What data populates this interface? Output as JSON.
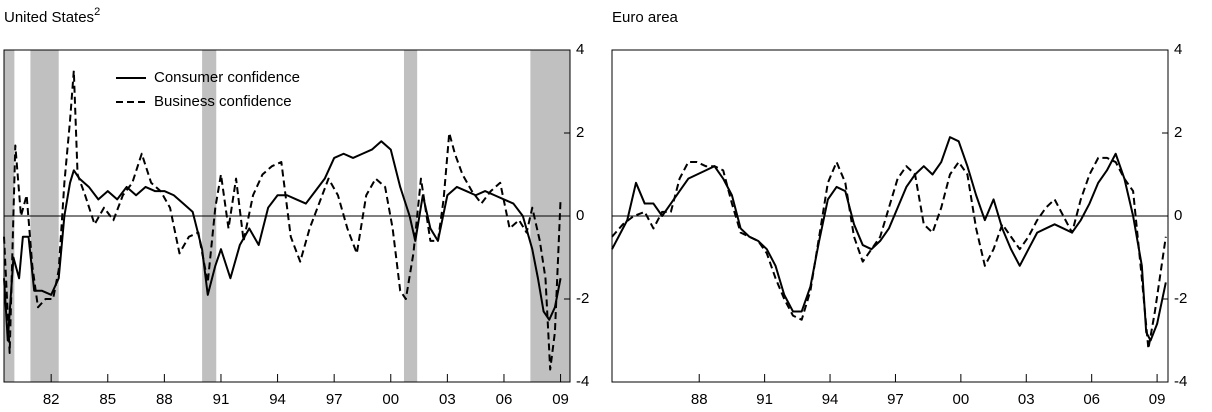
{
  "chart_data": [
    {
      "type": "line",
      "title": "United States",
      "title_superscript": "2",
      "xlim": [
        1980,
        2010
      ],
      "ylim": [
        -4,
        4
      ],
      "xticks": [
        {
          "value": 1982.5,
          "label": "82"
        },
        {
          "value": 1985.5,
          "label": "85"
        },
        {
          "value": 1988.5,
          "label": "88"
        },
        {
          "value": 1991.5,
          "label": "91"
        },
        {
          "value": 1994.5,
          "label": "94"
        },
        {
          "value": 1997.5,
          "label": "97"
        },
        {
          "value": 2000.5,
          "label": "00"
        },
        {
          "value": 2003.5,
          "label": "03"
        },
        {
          "value": 2006.5,
          "label": "06"
        },
        {
          "value": 2009.5,
          "label": "09"
        }
      ],
      "yticks": [
        -4,
        -2,
        0,
        2,
        4
      ],
      "legend": "upper left",
      "shade_color": "#c0c0c0",
      "shaded_periods": [
        [
          1980.0,
          1980.55
        ],
        [
          1981.4,
          1982.9
        ],
        [
          1990.5,
          1991.25
        ],
        [
          2001.2,
          2001.9
        ],
        [
          2007.9,
          2010
        ]
      ],
      "series": [
        {
          "name": "Consumer confidence",
          "color": "#000000",
          "line_style": "solid",
          "x": [
            1980.0,
            1980.2,
            1980.5,
            1980.8,
            1981.0,
            1981.3,
            1981.6,
            1982.0,
            1982.5,
            1982.9,
            1983.2,
            1983.5,
            1983.7,
            1984.0,
            1984.5,
            1985.0,
            1985.5,
            1986.0,
            1986.5,
            1987.0,
            1987.5,
            1988.0,
            1988.5,
            1989.0,
            1989.5,
            1990.0,
            1990.5,
            1990.8,
            1991.2,
            1991.5,
            1992.0,
            1992.5,
            1993.0,
            1993.5,
            1994.0,
            1994.5,
            1995.0,
            1995.5,
            1996.0,
            1996.5,
            1997.0,
            1997.5,
            1998.0,
            1998.5,
            1999.0,
            1999.5,
            2000.0,
            2000.5,
            2001.0,
            2001.5,
            2001.8,
            2002.2,
            2002.6,
            2003.0,
            2003.5,
            2004.0,
            2004.5,
            2005.0,
            2005.5,
            2006.0,
            2006.5,
            2007.0,
            2007.5,
            2008.0,
            2008.3,
            2008.6,
            2008.9,
            2009.2,
            2009.5
          ],
          "values": [
            -1.5,
            -3.0,
            -1.0,
            -1.5,
            -0.5,
            -0.5,
            -1.8,
            -1.8,
            -1.9,
            -1.5,
            0,
            0.8,
            1.1,
            0.9,
            0.7,
            0.4,
            0.6,
            0.4,
            0.7,
            0.5,
            0.7,
            0.6,
            0.6,
            0.5,
            0.3,
            0.1,
            -0.8,
            -1.9,
            -1.2,
            -0.8,
            -1.5,
            -0.7,
            -0.3,
            -0.7,
            0.2,
            0.5,
            0.5,
            0.4,
            0.3,
            0.6,
            0.9,
            1.4,
            1.5,
            1.4,
            1.5,
            1.6,
            1.8,
            1.6,
            0.7,
            0,
            -0.6,
            0.5,
            -0.3,
            -0.6,
            0.5,
            0.7,
            0.6,
            0.5,
            0.6,
            0.5,
            0.4,
            0.3,
            0,
            -0.8,
            -1.5,
            -2.3,
            -2.5,
            -2.2,
            -1.5
          ]
        },
        {
          "name": "Business confidence",
          "color": "#000000",
          "line_style": "dashed",
          "x": [
            1980.0,
            1980.3,
            1980.6,
            1980.9,
            1981.2,
            1981.5,
            1981.8,
            1982.2,
            1982.6,
            1982.9,
            1983.2,
            1983.5,
            1983.7,
            1983.9,
            1984.3,
            1984.8,
            1985.3,
            1985.8,
            1986.3,
            1986.8,
            1987.3,
            1987.8,
            1988.3,
            1988.8,
            1989.3,
            1989.8,
            1990.3,
            1990.8,
            1991.2,
            1991.5,
            1991.9,
            1992.3,
            1992.7,
            1993.2,
            1993.7,
            1994.2,
            1994.7,
            1995.2,
            1995.7,
            1996.2,
            1996.7,
            1997.2,
            1997.7,
            1998.2,
            1998.7,
            1999.2,
            1999.7,
            2000.2,
            2000.6,
            2001.0,
            2001.3,
            2001.7,
            2002.1,
            2002.6,
            2003.0,
            2003.3,
            2003.6,
            2003.9,
            2004.3,
            2004.8,
            2005.3,
            2005.8,
            2006.3,
            2006.8,
            2007.3,
            2007.7,
            2008.0,
            2008.4,
            2008.7,
            2008.95,
            2009.2,
            2009.5
          ],
          "values": [
            -0.5,
            -3.3,
            1.7,
            0,
            0.5,
            -1.2,
            -2.2,
            -2.0,
            -2.0,
            -1.3,
            0.8,
            2.3,
            3.5,
            1.0,
            0.5,
            -0.2,
            0.2,
            -0.1,
            0.5,
            0.8,
            1.5,
            0.8,
            0.6,
            0.2,
            -0.9,
            -0.5,
            -0.4,
            -1.6,
            0.2,
            1.0,
            -0.3,
            0.9,
            -0.6,
            0.5,
            1.0,
            1.2,
            1.3,
            -0.5,
            -1.1,
            -0.3,
            0.3,
            0.9,
            0.5,
            -0.3,
            -0.9,
            0.5,
            0.9,
            0.7,
            -0.3,
            -1.8,
            -2.0,
            -0.9,
            0.9,
            -0.6,
            -0.6,
            0.4,
            2.0,
            1.5,
            1.0,
            0.6,
            0.3,
            0.6,
            0.8,
            -0.3,
            -0.1,
            -0.4,
            0.2,
            -0.6,
            -1.5,
            -3.7,
            -2.8,
            0.4
          ]
        }
      ]
    },
    {
      "type": "line",
      "title": "Euro area",
      "xlim": [
        1984.5,
        2010
      ],
      "ylim": [
        -4,
        4
      ],
      "xticks": [
        {
          "value": 1988.5,
          "label": "88"
        },
        {
          "value": 1991.5,
          "label": "91"
        },
        {
          "value": 1994.5,
          "label": "94"
        },
        {
          "value": 1997.5,
          "label": "97"
        },
        {
          "value": 2000.5,
          "label": "00"
        },
        {
          "value": 2003.5,
          "label": "03"
        },
        {
          "value": 2006.5,
          "label": "06"
        },
        {
          "value": 2009.5,
          "label": "09"
        }
      ],
      "yticks": [
        -4,
        -2,
        0,
        2,
        4
      ],
      "series": [
        {
          "color": "#000000",
          "line_style": "solid",
          "x": [
            1984.5,
            1984.8,
            1985.2,
            1985.6,
            1986.0,
            1986.4,
            1986.8,
            1987.2,
            1987.6,
            1988.0,
            1988.4,
            1988.8,
            1989.2,
            1989.6,
            1990.0,
            1990.4,
            1990.8,
            1991.2,
            1991.6,
            1992.0,
            1992.4,
            1992.8,
            1993.2,
            1993.6,
            1994.0,
            1994.4,
            1994.8,
            1995.2,
            1995.6,
            1996.0,
            1996.4,
            1996.8,
            1997.2,
            1997.6,
            1998.0,
            1998.4,
            1998.8,
            1999.2,
            1999.6,
            2000.0,
            2000.4,
            2000.8,
            2001.2,
            2001.6,
            2002.0,
            2002.4,
            2002.8,
            2003.2,
            2003.6,
            2004.0,
            2004.4,
            2004.8,
            2005.2,
            2005.6,
            2006.0,
            2006.4,
            2006.8,
            2007.2,
            2007.6,
            2008.0,
            2008.4,
            2008.8,
            2009.0,
            2009.2,
            2009.5,
            2009.9
          ],
          "values": [
            -0.8,
            -0.5,
            -0.1,
            0.8,
            0.3,
            0.3,
            0.0,
            0.3,
            0.6,
            0.9,
            1.0,
            1.1,
            1.2,
            0.9,
            0.5,
            -0.3,
            -0.5,
            -0.6,
            -0.8,
            -1.2,
            -1.9,
            -2.3,
            -2.3,
            -1.7,
            -0.6,
            0.4,
            0.7,
            0.6,
            -0.2,
            -0.7,
            -0.8,
            -0.6,
            -0.3,
            0.2,
            0.7,
            1.0,
            1.2,
            1.0,
            1.3,
            1.9,
            1.8,
            1.2,
            0.5,
            -0.1,
            0.4,
            -0.3,
            -0.8,
            -1.2,
            -0.8,
            -0.4,
            -0.3,
            -0.2,
            -0.3,
            -0.4,
            -0.1,
            0.3,
            0.8,
            1.1,
            1.5,
            0.9,
            0.0,
            -1.2,
            -2.8,
            -3.0,
            -2.6,
            -1.6
          ]
        },
        {
          "color": "#000000",
          "line_style": "dashed",
          "x": [
            1984.5,
            1985.0,
            1985.5,
            1986.0,
            1986.4,
            1986.8,
            1987.2,
            1987.6,
            1988.0,
            1988.4,
            1988.8,
            1989.2,
            1989.6,
            1990.0,
            1990.4,
            1990.8,
            1991.2,
            1991.6,
            1992.0,
            1992.4,
            1992.8,
            1993.2,
            1993.6,
            1994.0,
            1994.4,
            1994.8,
            1995.2,
            1995.6,
            1996.0,
            1996.4,
            1996.8,
            1997.2,
            1997.6,
            1998.0,
            1998.4,
            1998.8,
            1999.2,
            1999.6,
            2000.0,
            2000.4,
            2000.8,
            2001.2,
            2001.6,
            2002.0,
            2002.4,
            2002.8,
            2003.2,
            2003.6,
            2004.0,
            2004.4,
            2004.8,
            2005.2,
            2005.6,
            2006.0,
            2006.4,
            2006.8,
            2007.2,
            2007.6,
            2008.0,
            2008.4,
            2008.8,
            2009.1,
            2009.4,
            2009.9
          ],
          "values": [
            -0.5,
            -0.2,
            0,
            0.1,
            -0.3,
            0.1,
            0.1,
            0.9,
            1.3,
            1.3,
            1.2,
            1.2,
            1.1,
            0.3,
            -0.4,
            -0.5,
            -0.6,
            -0.9,
            -1.5,
            -2.0,
            -2.4,
            -2.5,
            -1.8,
            -0.5,
            0.8,
            1.3,
            0.8,
            -0.5,
            -1.1,
            -0.8,
            -0.5,
            0.2,
            0.9,
            1.2,
            1.0,
            -0.2,
            -0.4,
            0.2,
            1.0,
            1.3,
            1.0,
            -0.3,
            -1.2,
            -0.8,
            -0.2,
            -0.5,
            -0.8,
            -0.5,
            -0.1,
            0.2,
            0.4,
            0.0,
            -0.4,
            0.4,
            1.0,
            1.4,
            1.4,
            1.3,
            0.9,
            0.6,
            -1.5,
            -3.2,
            -2.3,
            -0.5
          ]
        }
      ]
    }
  ]
}
